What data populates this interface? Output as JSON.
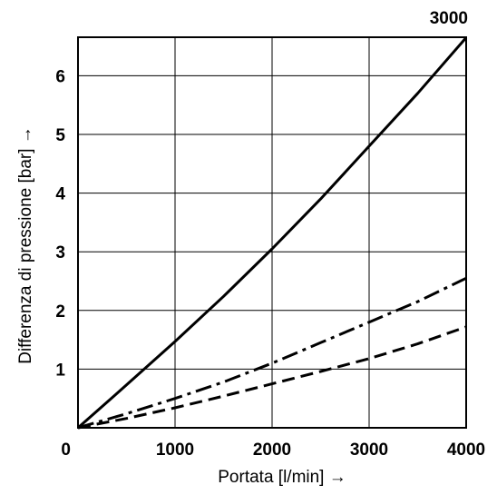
{
  "chart_data": {
    "type": "line",
    "xlabel": "Portata [l/min] →",
    "ylabel": "Differenza di pressione [bar] →",
    "xlim": [
      0,
      4000
    ],
    "ylim": [
      0,
      6.5
    ],
    "xticks": [
      0,
      1000,
      2000,
      3000,
      4000
    ],
    "yticks": [
      1,
      2,
      3,
      4,
      5,
      6
    ],
    "grid": true,
    "series": [
      {
        "name": "3000",
        "line_style": "solid",
        "x": [
          0,
          500,
          1000,
          1500,
          2000,
          2500,
          3000,
          3500,
          4000
        ],
        "y": [
          0,
          0.73,
          1.47,
          2.24,
          3.05,
          3.9,
          4.8,
          5.7,
          6.65
        ]
      },
      {
        "line_style": "dash-dot",
        "x": [
          0,
          500,
          1000,
          1500,
          2000,
          2500,
          3000,
          3500,
          4000
        ],
        "y": [
          0,
          0.24,
          0.5,
          0.78,
          1.1,
          1.45,
          1.8,
          2.15,
          2.55
        ]
      },
      {
        "line_style": "dashed",
        "x": [
          0,
          500,
          1000,
          1500,
          2000,
          2500,
          3000,
          3500,
          4000
        ],
        "y": [
          0,
          0.16,
          0.34,
          0.54,
          0.75,
          0.96,
          1.18,
          1.43,
          1.72
        ]
      }
    ]
  }
}
